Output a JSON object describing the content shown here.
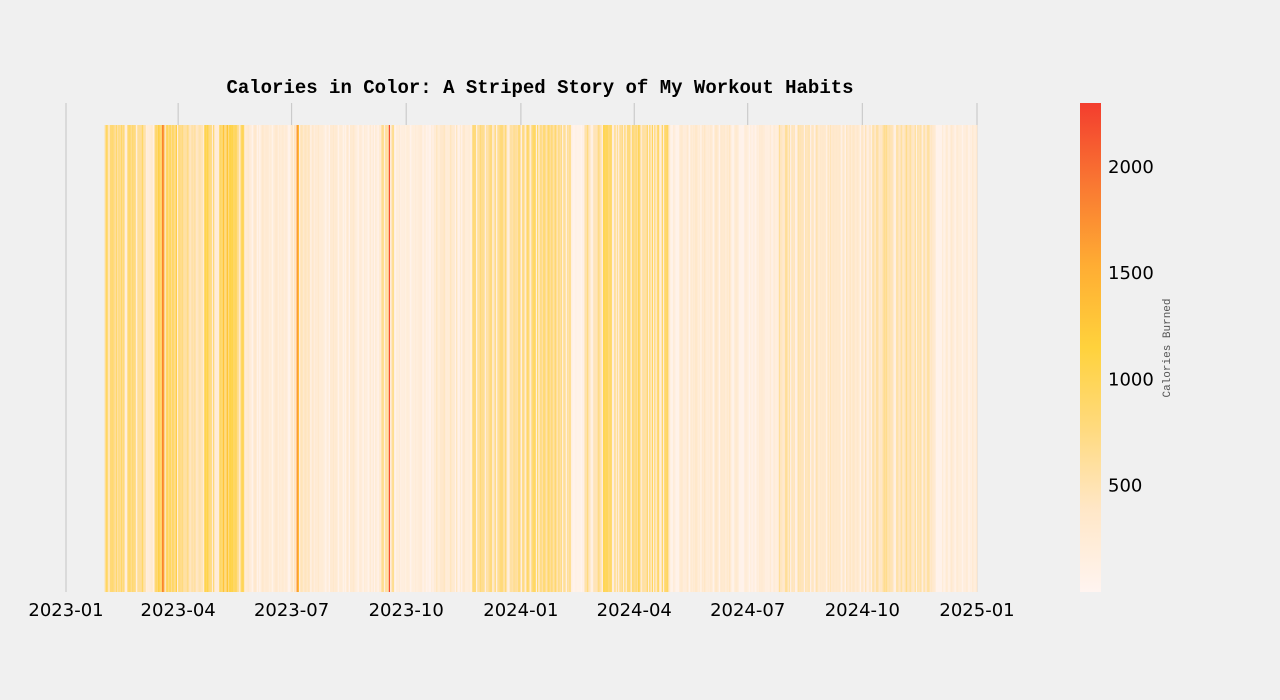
{
  "chart_data": {
    "type": "heatmap",
    "title": "Calories in Color: A Striped Story of My Workout Habits",
    "xlabel": "",
    "ylabel": "",
    "colorbar_label": "Calories Burned",
    "x_ticks": [
      "2023-01",
      "2023-04",
      "2023-07",
      "2023-10",
      "2024-01",
      "2024-04",
      "2024-07",
      "2024-10",
      "2025-01"
    ],
    "x_range": [
      "2023-01-01",
      "2025-01-01"
    ],
    "colorbar_ticks": [
      500,
      1000,
      1500,
      2000
    ],
    "colorbar_range": [
      0,
      2300
    ],
    "grid": true,
    "colormap": [
      "#fff4f0",
      "#ffe7c8",
      "#ffda7f",
      "#ffd23c",
      "#ffad33",
      "#f97832",
      "#f33d2e"
    ],
    "date_range": [
      "2023-02-01",
      "2024-12-31"
    ],
    "notable_days": [
      {
        "date": "2023-03-19",
        "calories": 1850
      },
      {
        "date": "2023-03-20",
        "calories": 1600
      },
      {
        "date": "2023-07-05",
        "calories": 1700
      },
      {
        "date": "2023-07-06",
        "calories": 1400
      },
      {
        "date": "2023-09-17",
        "calories": 2200
      }
    ],
    "periods": [
      {
        "start": "2023-02-01",
        "end": "2023-03-05",
        "base": 720
      },
      {
        "start": "2023-03-06",
        "end": "2023-03-12",
        "base": 250
      },
      {
        "start": "2023-03-13",
        "end": "2023-04-05",
        "base": 820
      },
      {
        "start": "2023-04-06",
        "end": "2023-04-20",
        "base": 500
      },
      {
        "start": "2023-04-21",
        "end": "2023-05-23",
        "base": 900
      },
      {
        "start": "2023-05-24",
        "end": "2023-06-30",
        "base": 240
      },
      {
        "start": "2023-07-01",
        "end": "2023-07-15",
        "base": 420
      },
      {
        "start": "2023-07-16",
        "end": "2023-09-10",
        "base": 240
      },
      {
        "start": "2023-09-11",
        "end": "2023-09-20",
        "base": 650
      },
      {
        "start": "2023-09-21",
        "end": "2023-10-20",
        "base": 180
      },
      {
        "start": "2023-10-21",
        "end": "2023-11-20",
        "base": 300
      },
      {
        "start": "2023-11-21",
        "end": "2024-02-10",
        "base": 640
      },
      {
        "start": "2024-02-11",
        "end": "2024-02-20",
        "base": 80
      },
      {
        "start": "2024-02-21",
        "end": "2024-03-05",
        "base": 520
      },
      {
        "start": "2024-03-06",
        "end": "2024-04-28",
        "base": 780
      },
      {
        "start": "2024-04-29",
        "end": "2024-06-25",
        "base": 280
      },
      {
        "start": "2024-06-26",
        "end": "2024-07-25",
        "base": 200
      },
      {
        "start": "2024-07-26",
        "end": "2024-08-25",
        "base": 440
      },
      {
        "start": "2024-08-26",
        "end": "2024-10-05",
        "base": 320
      },
      {
        "start": "2024-10-06",
        "end": "2024-11-25",
        "base": 480
      },
      {
        "start": "2024-11-26",
        "end": "2024-12-31",
        "base": 220
      }
    ]
  }
}
